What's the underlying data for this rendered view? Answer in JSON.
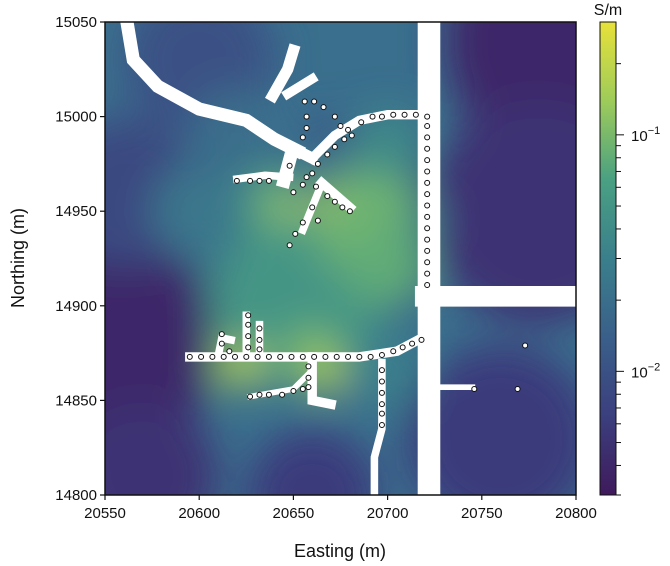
{
  "chart_data": {
    "type": "heatmap",
    "title": "",
    "xlabel": "Easting (m)",
    "ylabel": "Northing (m)",
    "xlim": [
      20550,
      20800
    ],
    "ylim": [
      14800,
      15050
    ],
    "xticks": [
      "20550",
      "20600",
      "20650",
      "20700",
      "20750",
      "20800"
    ],
    "yticks": [
      "14800",
      "14850",
      "14900",
      "14950",
      "15000",
      "15050"
    ],
    "grid": false,
    "colorbar": {
      "unit_label": "S/m",
      "scale": "log",
      "range": [
        0.003,
        0.3
      ],
      "tick_labels": [
        {
          "value": 0.1,
          "base": "10",
          "exponent": "−1"
        },
        {
          "value": 0.01,
          "base": "10",
          "exponent": "−2"
        }
      ],
      "colors": [
        "#3f1a5c",
        "#3b3f7e",
        "#3a5f8a",
        "#3a7f8c",
        "#4aa082",
        "#9ecb5a",
        "#e7e13a"
      ]
    },
    "field_blobs": [
      {
        "x": 20550,
        "y": 14880,
        "value": 0.004,
        "r": 60
      },
      {
        "x": 20800,
        "y": 15040,
        "value": 0.004,
        "r": 70
      },
      {
        "x": 20780,
        "y": 14950,
        "value": 0.005,
        "r": 60
      },
      {
        "x": 20570,
        "y": 14810,
        "value": 0.005,
        "r": 40
      },
      {
        "x": 20660,
        "y": 14800,
        "value": 0.006,
        "r": 35
      },
      {
        "x": 20560,
        "y": 14960,
        "value": 0.008,
        "r": 40
      },
      {
        "x": 20760,
        "y": 14830,
        "value": 0.006,
        "r": 50
      },
      {
        "x": 20600,
        "y": 15030,
        "value": 0.01,
        "r": 40
      },
      {
        "x": 20650,
        "y": 14900,
        "value": 0.05,
        "r": 45
      },
      {
        "x": 20690,
        "y": 14945,
        "value": 0.09,
        "r": 30
      },
      {
        "x": 20700,
        "y": 14920,
        "value": 0.08,
        "r": 22
      },
      {
        "x": 20640,
        "y": 14955,
        "value": 0.07,
        "r": 18
      },
      {
        "x": 20620,
        "y": 14870,
        "value": 0.1,
        "r": 14
      },
      {
        "x": 20660,
        "y": 14875,
        "value": 0.1,
        "r": 14
      },
      {
        "x": 20645,
        "y": 14952,
        "value": 0.2,
        "r": 6
      },
      {
        "x": 20665,
        "y": 14955,
        "value": 0.2,
        "r": 6
      },
      {
        "x": 20625,
        "y": 14868,
        "value": 0.22,
        "r": 8
      },
      {
        "x": 20667,
        "y": 14864,
        "value": 0.18,
        "r": 10
      },
      {
        "x": 20700,
        "y": 14865,
        "value": 0.03,
        "r": 20
      },
      {
        "x": 20715,
        "y": 14900,
        "value": 0.015,
        "r": 8
      },
      {
        "x": 20720,
        "y": 14945,
        "value": 0.03,
        "r": 10
      },
      {
        "x": 20668,
        "y": 14990,
        "value": 0.01,
        "r": 10
      },
      {
        "x": 20700,
        "y": 14985,
        "value": 0.04,
        "r": 18
      },
      {
        "x": 20600,
        "y": 14950,
        "value": 0.025,
        "r": 25
      },
      {
        "x": 20620,
        "y": 14990,
        "value": 0.02,
        "r": 25
      }
    ],
    "tunnels": [
      {
        "points": [
          [
            20562,
            15048
          ],
          [
            20565,
            15030
          ],
          [
            20578,
            15016
          ],
          [
            20600,
            15004
          ],
          [
            20625,
            14998
          ],
          [
            20640,
            14988
          ],
          [
            20652,
            14982
          ]
        ],
        "width": 7
      },
      {
        "points": [
          [
            20639,
            15011
          ],
          [
            20647,
            15025
          ],
          [
            20650,
            15035
          ]
        ],
        "width": 6
      },
      {
        "points": [
          [
            20647,
            15012
          ],
          [
            20660,
            15020
          ]
        ],
        "width": 5
      },
      {
        "points": [
          [
            20652,
            14982
          ],
          [
            20660,
            14978
          ]
        ],
        "width": 6
      },
      {
        "points": [
          [
            20660,
            14978
          ],
          [
            20672,
            14990
          ],
          [
            20685,
            14998
          ],
          [
            20700,
            15001
          ],
          [
            20722,
            15001
          ]
        ],
        "width": 5
      },
      {
        "points": [
          [
            20648,
            14977
          ],
          [
            20645,
            14966
          ]
        ],
        "width": 7
      },
      {
        "points": [
          [
            20620,
            14967
          ],
          [
            20635,
            14969
          ],
          [
            20648,
            14968
          ]
        ],
        "width": 4
      },
      {
        "points": [
          [
            20722,
            15050
          ],
          [
            20722,
            14800
          ]
        ],
        "width": 12
      },
      {
        "points": [
          [
            20720,
            14905
          ],
          [
            20800,
            14905
          ]
        ],
        "width": 11
      },
      {
        "points": [
          [
            20595,
            14873
          ],
          [
            20685,
            14873
          ],
          [
            20705,
            14876
          ],
          [
            20722,
            14885
          ]
        ],
        "width": 5
      },
      {
        "points": [
          [
            20660,
            14873
          ],
          [
            20660,
            14850
          ],
          [
            20670,
            14848
          ]
        ],
        "width": 5
      },
      {
        "points": [
          [
            20627,
            14852
          ],
          [
            20650,
            14856
          ],
          [
            20658,
            14864
          ]
        ],
        "width": 3
      },
      {
        "points": [
          [
            20697,
            14870
          ],
          [
            20697,
            14835
          ],
          [
            20693,
            14820
          ],
          [
            20693,
            14800
          ]
        ],
        "width": 4
      },
      {
        "points": [
          [
            20610,
            14873
          ],
          [
            20612,
            14883
          ],
          [
            20617,
            14882
          ]
        ],
        "width": 4
      },
      {
        "points": [
          [
            20625,
            14873
          ],
          [
            20625,
            14895
          ]
        ],
        "width": 4
      },
      {
        "points": [
          [
            20632,
            14873
          ],
          [
            20632,
            14890
          ]
        ],
        "width": 4
      },
      {
        "points": [
          [
            20728,
            14857
          ],
          [
            20745,
            14857
          ]
        ],
        "width": 3
      },
      {
        "points": [
          [
            20665,
            14965
          ],
          [
            20680,
            14952
          ]
        ],
        "width": 5
      },
      {
        "points": [
          [
            20664,
            14962
          ],
          [
            20655,
            14940
          ]
        ],
        "width": 4
      }
    ],
    "stations": [
      [
        20656,
        15008
      ],
      [
        20661,
        15008
      ],
      [
        20666,
        15005
      ],
      [
        20672,
        15000
      ],
      [
        20675,
        14995
      ],
      [
        20679,
        14993
      ],
      [
        20657,
        15000
      ],
      [
        20657,
        14994
      ],
      [
        20655,
        14989
      ],
      [
        20681,
        14990
      ],
      [
        20686,
        14997
      ],
      [
        20692,
        15000
      ],
      [
        20697,
        15000
      ],
      [
        20703,
        15001
      ],
      [
        20709,
        15001
      ],
      [
        20715,
        15001
      ],
      [
        20721,
        15000
      ],
      [
        20677,
        14988
      ],
      [
        20672,
        14984
      ],
      [
        20668,
        14980
      ],
      [
        20663,
        14975
      ],
      [
        20660,
        14970
      ],
      [
        20655,
        14964
      ],
      [
        20650,
        14960
      ],
      [
        20648,
        14974
      ],
      [
        20620,
        14966
      ],
      [
        20627,
        14966
      ],
      [
        20632,
        14966
      ],
      [
        20637,
        14966
      ],
      [
        20657,
        14968
      ],
      [
        20662,
        14963
      ],
      [
        20668,
        14958
      ],
      [
        20672,
        14955
      ],
      [
        20676,
        14952
      ],
      [
        20680,
        14950
      ],
      [
        20660,
        14952
      ],
      [
        20655,
        14944
      ],
      [
        20651,
        14938
      ],
      [
        20648,
        14932
      ],
      [
        20663,
        14945
      ],
      [
        20721,
        14995
      ],
      [
        20721,
        14989
      ],
      [
        20721,
        14983
      ],
      [
        20721,
        14977
      ],
      [
        20721,
        14971
      ],
      [
        20721,
        14965
      ],
      [
        20721,
        14959
      ],
      [
        20721,
        14953
      ],
      [
        20721,
        14947
      ],
      [
        20721,
        14941
      ],
      [
        20721,
        14935
      ],
      [
        20721,
        14929
      ],
      [
        20721,
        14923
      ],
      [
        20721,
        14917
      ],
      [
        20721,
        14911
      ],
      [
        20595,
        14873
      ],
      [
        20601,
        14873
      ],
      [
        20607,
        14873
      ],
      [
        20613,
        14873
      ],
      [
        20619,
        14873
      ],
      [
        20625,
        14873
      ],
      [
        20631,
        14873
      ],
      [
        20637,
        14873
      ],
      [
        20643,
        14873
      ],
      [
        20649,
        14873
      ],
      [
        20655,
        14873
      ],
      [
        20661,
        14873
      ],
      [
        20667,
        14873
      ],
      [
        20673,
        14873
      ],
      [
        20679,
        14873
      ],
      [
        20685,
        14873
      ],
      [
        20691,
        14873
      ],
      [
        20697,
        14874
      ],
      [
        20703,
        14876
      ],
      [
        20708,
        14878
      ],
      [
        20713,
        14880
      ],
      [
        20718,
        14882
      ],
      [
        20612,
        14885
      ],
      [
        20612,
        14880
      ],
      [
        20616,
        14876
      ],
      [
        20626,
        14895
      ],
      [
        20626,
        14890
      ],
      [
        20626,
        14884
      ],
      [
        20626,
        14878
      ],
      [
        20632,
        14888
      ],
      [
        20632,
        14882
      ],
      [
        20632,
        14877
      ],
      [
        20658,
        14868
      ],
      [
        20658,
        14862
      ],
      [
        20658,
        14857
      ],
      [
        20627,
        14852
      ],
      [
        20632,
        14853
      ],
      [
        20637,
        14853
      ],
      [
        20644,
        14853
      ],
      [
        20650,
        14855
      ],
      [
        20655,
        14856
      ],
      [
        20697,
        14866
      ],
      [
        20697,
        14860
      ],
      [
        20697,
        14854
      ],
      [
        20697,
        14848
      ],
      [
        20697,
        14843
      ],
      [
        20697,
        14837
      ],
      [
        20746,
        14856
      ],
      [
        20769,
        14856
      ],
      [
        20773,
        14879
      ]
    ],
    "station_radius": 2.5,
    "mask_color": "#ffffff",
    "station_fill": "#ffffff",
    "station_stroke": "#111111"
  }
}
